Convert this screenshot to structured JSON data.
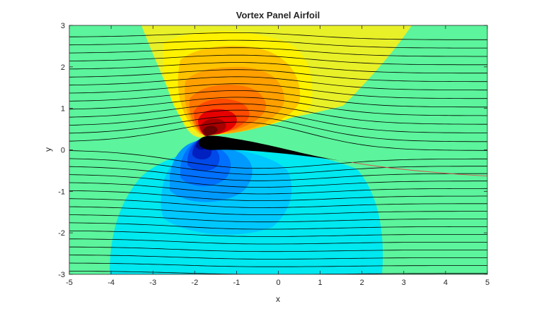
{
  "chart_data": {
    "type": "contour",
    "title": "Vortex Panel Airfoil",
    "xlabel": "x",
    "ylabel": "y",
    "xlim": [
      -5,
      5
    ],
    "ylim": [
      -3,
      3
    ],
    "xticks": [
      -5,
      -4,
      -3,
      -2,
      -1,
      0,
      1,
      2,
      3,
      4,
      5
    ],
    "yticks": [
      -3,
      -2,
      -1,
      0,
      1,
      2,
      3
    ],
    "grid": false,
    "legend": "none",
    "colormap": "jet",
    "airfoil": {
      "leading_edge": [
        -1.9,
        0.2
      ],
      "trailing_edge": [
        1.75,
        -0.3
      ],
      "color": "#000000"
    },
    "wake_streamline_color": "#d9534f",
    "streamline_color": "#000000",
    "streamline_count": 30
  }
}
